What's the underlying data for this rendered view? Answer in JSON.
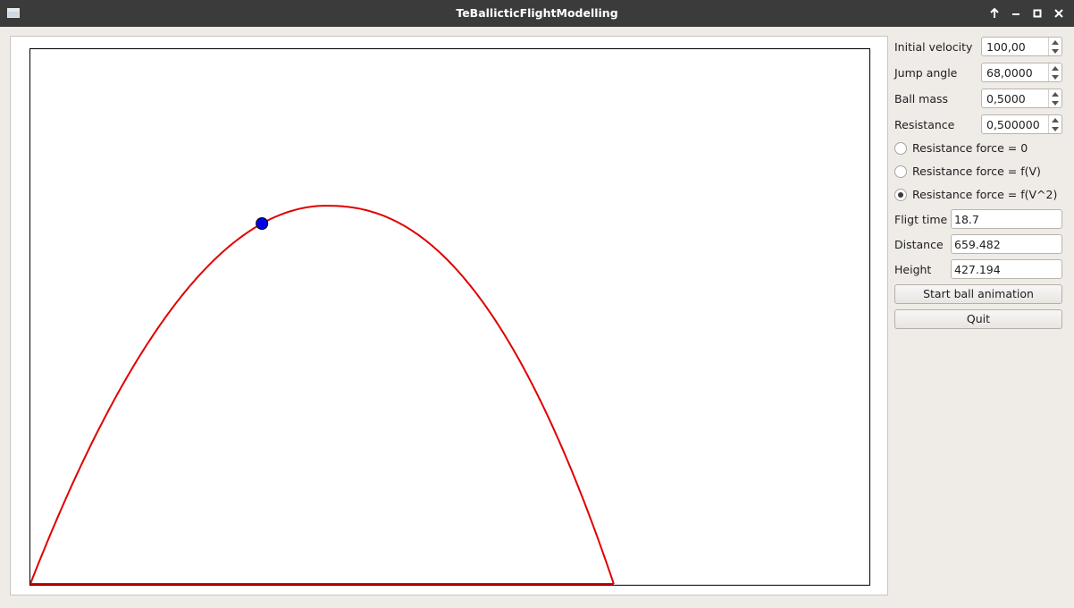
{
  "window": {
    "title": "TeBallicticFlightModelling",
    "buttons": [
      "keep-above",
      "minimize",
      "maximize",
      "close"
    ]
  },
  "controls": {
    "initial_velocity": {
      "label": "Initial velocity",
      "value": "100,00"
    },
    "jump_angle": {
      "label": "Jump angle",
      "value": "68,0000"
    },
    "ball_mass": {
      "label": "Ball mass",
      "value": "0,5000"
    },
    "resistance": {
      "label": "Resistance",
      "value": "0,500000"
    },
    "resistance_modes": [
      {
        "label": "Resistance force = 0",
        "checked": false
      },
      {
        "label": "Resistance force = f(V)",
        "checked": false
      },
      {
        "label": "Resistance force = f(V^2)",
        "checked": true
      }
    ]
  },
  "results": {
    "flight_time": {
      "label": "Fligt time",
      "value": "18.7"
    },
    "distance": {
      "label": "Distance",
      "value": "659.482"
    },
    "height": {
      "label": "Height",
      "value": "427.194"
    }
  },
  "actions": {
    "start_label": "Start ball animation",
    "quit_label": "Quit"
  },
  "colors": {
    "trajectory": "#e00000",
    "ball": "#0000ee"
  },
  "chart_data": {
    "type": "line",
    "description_values": {
      "distance": 659.482,
      "height": 427.194,
      "apex_fraction_of_distance": 0.507
    },
    "ball_progress_fraction_x": 0.397
  }
}
